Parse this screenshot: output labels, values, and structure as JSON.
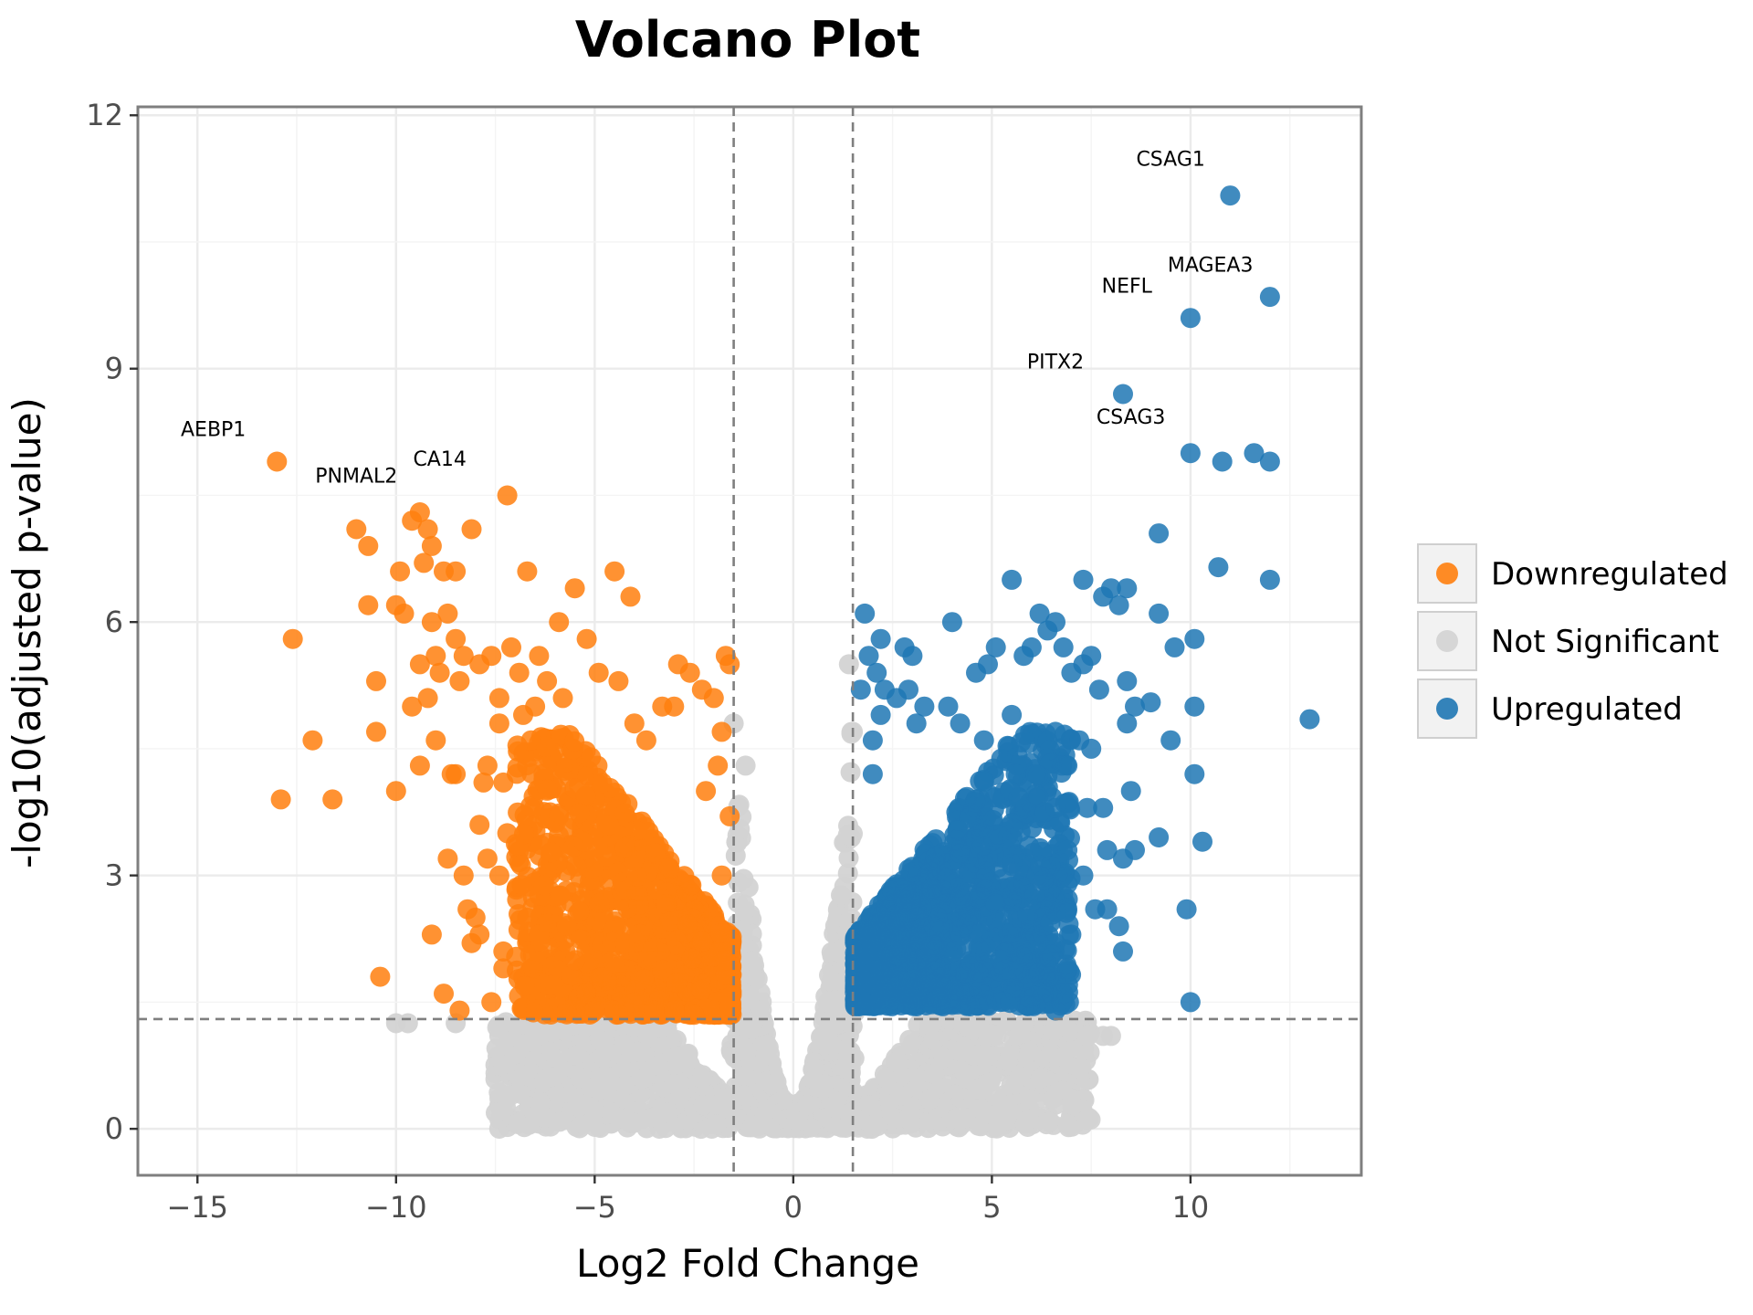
{
  "chart_data": {
    "type": "scatter",
    "title": "Volcano Plot",
    "xlabel": "Log2 Fold Change",
    "ylabel": "-log10(adjusted p-value)",
    "xlim": [
      -16.5,
      14.3
    ],
    "ylim": [
      -0.55,
      12.1
    ],
    "x_ticks": [
      -15,
      -10,
      -5,
      0,
      5,
      10
    ],
    "y_ticks": [
      0,
      3,
      6,
      9,
      12
    ],
    "x_tick_labels": [
      "−15",
      "−10",
      "−5",
      "0",
      "5",
      "10"
    ],
    "y_tick_labels": [
      "0",
      "3",
      "6",
      "9",
      "12"
    ],
    "thresholds": {
      "log2fc": [
        -1.5,
        1.5
      ],
      "neg_log10_padj": 1.3
    },
    "grid": true,
    "legend": {
      "placement": "right",
      "entries": [
        {
          "label": "Downregulated",
          "color": "#ff7f0e"
        },
        {
          "label": "Not Significant",
          "color": "#d3d3d3"
        },
        {
          "label": "Upregulated",
          "color": "#1f77b4"
        }
      ]
    },
    "series": [
      {
        "name": "Downregulated",
        "color": "#ff7f0e",
        "points": [
          [
            -13.0,
            7.9
          ],
          [
            -12.6,
            5.8
          ],
          [
            -12.1,
            4.6
          ],
          [
            -12.9,
            3.9
          ],
          [
            -11.6,
            3.9
          ],
          [
            -11.0,
            7.1
          ],
          [
            -10.7,
            6.9
          ],
          [
            -10.7,
            6.2
          ],
          [
            -10.5,
            5.3
          ],
          [
            -10.5,
            4.7
          ],
          [
            -10.4,
            1.8
          ],
          [
            -10.0,
            6.2
          ],
          [
            -9.9,
            6.6
          ],
          [
            -9.8,
            6.1
          ],
          [
            -10.0,
            4.0
          ],
          [
            -9.6,
            7.2
          ],
          [
            -9.4,
            7.3
          ],
          [
            -9.2,
            7.1
          ],
          [
            -9.1,
            6.9
          ],
          [
            -9.3,
            6.7
          ],
          [
            -9.1,
            6.0
          ],
          [
            -9.4,
            5.5
          ],
          [
            -9.0,
            5.6
          ],
          [
            -8.9,
            5.4
          ],
          [
            -9.6,
            5.0
          ],
          [
            -9.2,
            5.1
          ],
          [
            -9.4,
            4.3
          ],
          [
            -9.0,
            4.6
          ],
          [
            -9.1,
            2.3
          ],
          [
            -8.8,
            6.6
          ],
          [
            -8.7,
            6.1
          ],
          [
            -8.5,
            5.8
          ],
          [
            -8.5,
            6.6
          ],
          [
            -8.3,
            5.6
          ],
          [
            -8.4,
            5.3
          ],
          [
            -8.6,
            4.2
          ],
          [
            -8.5,
            4.2
          ],
          [
            -8.7,
            3.2
          ],
          [
            -8.3,
            3.0
          ],
          [
            -8.2,
            2.6
          ],
          [
            -8.1,
            2.2
          ],
          [
            -8.0,
            2.5
          ],
          [
            -7.9,
            2.3
          ],
          [
            -8.8,
            1.6
          ],
          [
            -8.4,
            1.4
          ],
          [
            -8.1,
            7.1
          ],
          [
            -7.9,
            5.5
          ],
          [
            -7.8,
            4.1
          ],
          [
            -7.9,
            3.6
          ],
          [
            -7.7,
            3.2
          ],
          [
            -7.6,
            1.5
          ],
          [
            -7.7,
            4.3
          ],
          [
            -7.6,
            5.6
          ],
          [
            -7.4,
            5.1
          ],
          [
            -7.2,
            7.5
          ],
          [
            -7.4,
            4.8
          ],
          [
            -7.3,
            4.1
          ],
          [
            -7.4,
            3.0
          ],
          [
            -7.2,
            3.5
          ],
          [
            -7.3,
            2.1
          ],
          [
            -7.3,
            1.9
          ],
          [
            -7.1,
            5.7
          ],
          [
            -6.9,
            5.4
          ],
          [
            -6.7,
            6.6
          ],
          [
            -6.8,
            4.9
          ],
          [
            -6.6,
            4.6
          ],
          [
            -6.5,
            5.0
          ],
          [
            -6.4,
            5.6
          ],
          [
            -6.2,
            5.3
          ],
          [
            -5.9,
            6.0
          ],
          [
            -5.8,
            5.1
          ],
          [
            -5.5,
            6.4
          ],
          [
            -5.2,
            5.8
          ],
          [
            -4.9,
            5.4
          ],
          [
            -4.5,
            6.6
          ],
          [
            -4.1,
            6.3
          ],
          [
            -4.4,
            5.3
          ],
          [
            -4.0,
            4.8
          ],
          [
            -3.7,
            4.6
          ],
          [
            -3.3,
            5.0
          ],
          [
            -3.0,
            5.0
          ],
          [
            -2.9,
            5.5
          ],
          [
            -2.6,
            5.4
          ],
          [
            -2.3,
            5.2
          ],
          [
            -2.0,
            5.1
          ],
          [
            -1.7,
            5.6
          ],
          [
            -1.6,
            5.5
          ],
          [
            -1.8,
            4.7
          ],
          [
            -1.9,
            4.3
          ],
          [
            -2.2,
            4.0
          ],
          [
            -6.7,
            2.5
          ],
          [
            -6.4,
            2.3
          ],
          [
            -6.1,
            1.7
          ],
          [
            -5.7,
            1.4
          ],
          [
            -5.0,
            1.4
          ],
          [
            -4.5,
            1.4
          ],
          [
            -4.0,
            1.5
          ],
          [
            -3.5,
            1.4
          ],
          [
            -3.0,
            1.4
          ],
          [
            -2.5,
            1.35
          ],
          [
            -2.0,
            1.4
          ],
          [
            -1.6,
            1.45
          ],
          [
            -1.7,
            2.0
          ],
          [
            -1.8,
            3.0
          ],
          [
            -1.6,
            3.7
          ]
        ],
        "cluster": {
          "x_range": [
            -7.0,
            -1.55
          ],
          "y_range": [
            1.35,
            4.7
          ],
          "count": 1300
        }
      },
      {
        "name": "Not Significant",
        "color": "#d3d3d3",
        "points": [
          [
            -10.0,
            1.25
          ],
          [
            -9.7,
            1.25
          ],
          [
            -8.5,
            1.25
          ],
          [
            -7.4,
            1.1
          ],
          [
            -6.8,
            1.0
          ],
          [
            -1.5,
            4.8
          ],
          [
            -1.2,
            4.3
          ],
          [
            1.4,
            5.5
          ],
          [
            1.5,
            4.7
          ],
          [
            6.5,
            0.9
          ],
          [
            6.8,
            0.85
          ],
          [
            7.4,
            1.1
          ],
          [
            7.8,
            1.1
          ],
          [
            8.0,
            1.1
          ],
          [
            5.4,
            0.8
          ]
        ],
        "cluster": {
          "x_range": [
            -7.5,
            7.5
          ],
          "y_range": [
            0.0,
            1.3
          ],
          "count": 1500
        }
      },
      {
        "name": "Upregulated",
        "color": "#1f77b4",
        "points": [
          [
            11.0,
            11.05
          ],
          [
            12.0,
            9.85
          ],
          [
            10.0,
            9.6
          ],
          [
            8.3,
            8.7
          ],
          [
            10.0,
            8.0
          ],
          [
            11.6,
            8.0
          ],
          [
            10.8,
            7.9
          ],
          [
            12.0,
            7.9
          ],
          [
            9.2,
            7.05
          ],
          [
            10.7,
            6.65
          ],
          [
            12.0,
            6.5
          ],
          [
            13.0,
            4.85
          ],
          [
            10.1,
            5.8
          ],
          [
            9.6,
            5.7
          ],
          [
            9.2,
            6.1
          ],
          [
            10.1,
            5.0
          ],
          [
            9.0,
            5.05
          ],
          [
            8.6,
            5.0
          ],
          [
            9.5,
            4.6
          ],
          [
            10.1,
            4.2
          ],
          [
            10.3,
            3.4
          ],
          [
            9.2,
            3.45
          ],
          [
            9.9,
            2.6
          ],
          [
            10.0,
            1.5
          ],
          [
            8.4,
            6.4
          ],
          [
            8.2,
            6.2
          ],
          [
            8.0,
            6.4
          ],
          [
            7.8,
            6.3
          ],
          [
            7.3,
            6.5
          ],
          [
            8.4,
            5.3
          ],
          [
            8.4,
            4.8
          ],
          [
            8.5,
            4.0
          ],
          [
            7.7,
            5.2
          ],
          [
            7.5,
            5.6
          ],
          [
            7.3,
            5.5
          ],
          [
            7.0,
            5.4
          ],
          [
            6.8,
            5.7
          ],
          [
            6.6,
            6.0
          ],
          [
            6.4,
            5.9
          ],
          [
            6.2,
            6.1
          ],
          [
            6.0,
            5.7
          ],
          [
            5.8,
            5.6
          ],
          [
            5.5,
            6.5
          ],
          [
            5.1,
            5.7
          ],
          [
            4.9,
            5.5
          ],
          [
            4.6,
            5.4
          ],
          [
            4.0,
            6.0
          ],
          [
            7.2,
            4.6
          ],
          [
            7.5,
            4.5
          ],
          [
            8.3,
            3.2
          ],
          [
            8.6,
            3.3
          ],
          [
            8.2,
            2.4
          ],
          [
            8.3,
            2.1
          ],
          [
            7.9,
            2.6
          ],
          [
            7.6,
            2.6
          ],
          [
            6.9,
            2.9
          ],
          [
            7.0,
            2.3
          ],
          [
            6.6,
            2.2
          ],
          [
            6.3,
            2.4
          ],
          [
            6.6,
            1.4
          ],
          [
            6.8,
            1.6
          ],
          [
            1.8,
            6.1
          ],
          [
            2.2,
            5.8
          ],
          [
            1.9,
            5.6
          ],
          [
            2.1,
            5.4
          ],
          [
            2.3,
            5.2
          ],
          [
            1.7,
            5.2
          ],
          [
            2.8,
            5.7
          ],
          [
            3.0,
            5.6
          ],
          [
            2.9,
            5.2
          ],
          [
            2.6,
            5.1
          ],
          [
            3.3,
            5.0
          ],
          [
            2.2,
            4.9
          ],
          [
            2.0,
            4.6
          ],
          [
            3.1,
            4.8
          ],
          [
            2.0,
            4.2
          ],
          [
            3.9,
            5.0
          ],
          [
            4.2,
            4.8
          ],
          [
            4.8,
            4.6
          ],
          [
            5.5,
            4.9
          ],
          [
            5.6,
            4.2
          ],
          [
            6.1,
            4.2
          ],
          [
            6.6,
            4.7
          ],
          [
            6.9,
            4.3
          ],
          [
            6.6,
            3.8
          ],
          [
            7.4,
            3.8
          ],
          [
            7.8,
            3.8
          ],
          [
            7.3,
            3.0
          ],
          [
            6.9,
            3.3
          ],
          [
            7.9,
            3.3
          ]
        ],
        "cluster": {
          "x_range": [
            1.55,
            7.0
          ],
          "y_range": [
            1.45,
            4.7
          ],
          "count": 1300
        }
      }
    ],
    "annotations": [
      {
        "text": "CSAG1",
        "x": 9.5,
        "y": 11.4
      },
      {
        "text": "MAGEA3",
        "x": 10.5,
        "y": 10.15
      },
      {
        "text": "NEFL",
        "x": 8.4,
        "y": 9.9
      },
      {
        "text": "PITX2",
        "x": 6.6,
        "y": 9.0
      },
      {
        "text": "CSAG3",
        "x": 8.5,
        "y": 8.35
      },
      {
        "text": "AEBP1",
        "x": -14.6,
        "y": 8.2
      },
      {
        "text": "PNMAL2",
        "x": -11.0,
        "y": 7.65
      },
      {
        "text": "CA14",
        "x": -8.9,
        "y": 7.85
      }
    ]
  }
}
